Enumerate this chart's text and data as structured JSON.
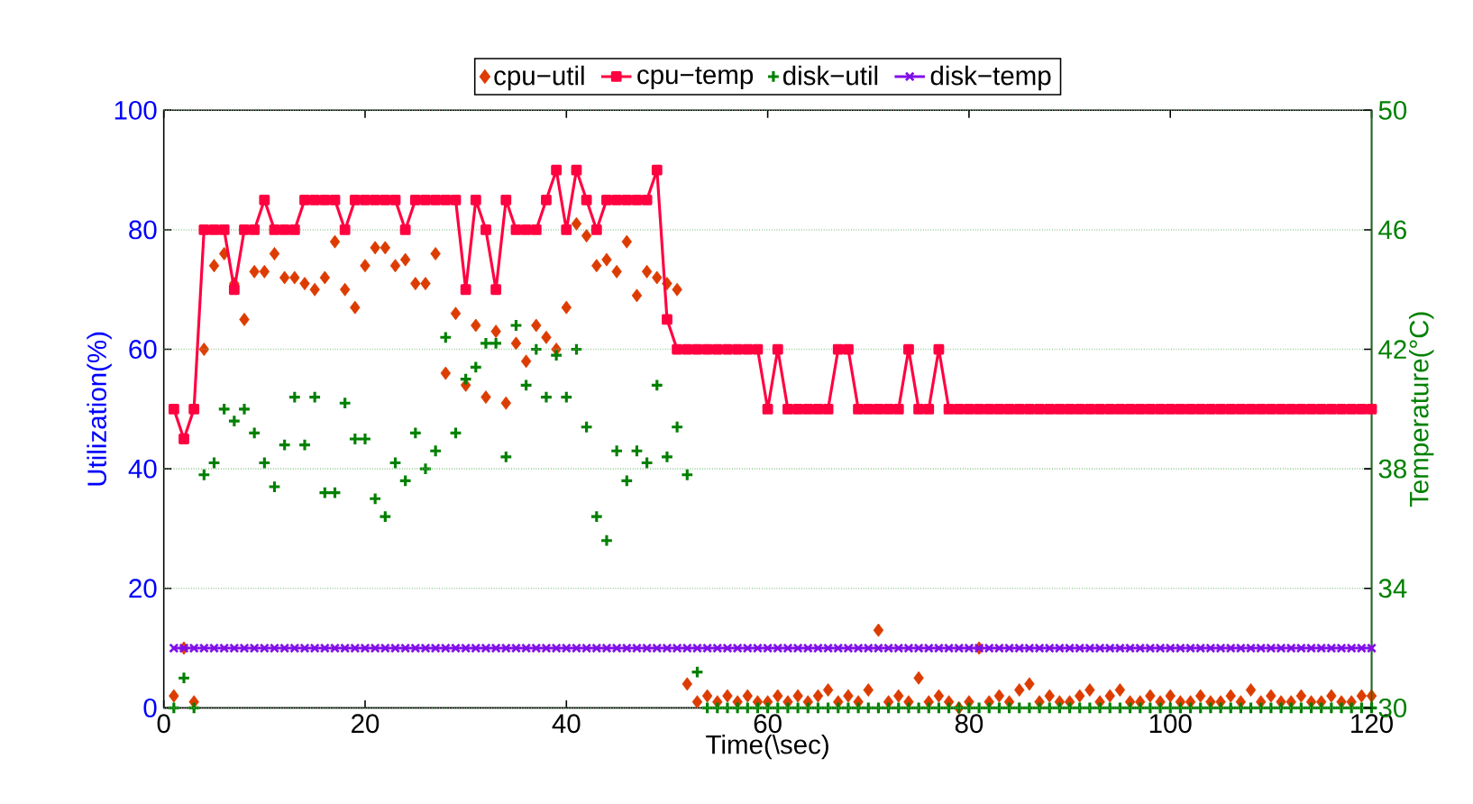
{
  "chart_data": {
    "type": "scatter",
    "xlabel": "Time(\\sec)",
    "ylabel": "Utilization(%)",
    "y2label": "Temperature(°C)",
    "x": [
      1,
      2,
      3,
      4,
      5,
      6,
      7,
      8,
      9,
      10,
      11,
      12,
      13,
      14,
      15,
      16,
      17,
      18,
      19,
      20,
      21,
      22,
      23,
      24,
      25,
      26,
      27,
      28,
      29,
      30,
      31,
      32,
      33,
      34,
      35,
      36,
      37,
      38,
      39,
      40,
      41,
      42,
      43,
      44,
      45,
      46,
      47,
      48,
      49,
      50,
      51,
      52,
      53,
      54,
      55,
      56,
      57,
      58,
      59,
      60,
      61,
      62,
      63,
      64,
      65,
      66,
      67,
      68,
      69,
      70,
      71,
      72,
      73,
      74,
      75,
      76,
      77,
      78,
      79,
      80,
      81,
      82,
      83,
      84,
      85,
      86,
      87,
      88,
      89,
      90,
      91,
      92,
      93,
      94,
      95,
      96,
      97,
      98,
      99,
      100,
      101,
      102,
      103,
      104,
      105,
      106,
      107,
      108,
      109,
      110,
      111,
      112,
      113,
      114,
      115,
      116,
      117,
      118,
      119,
      120
    ],
    "series": [
      {
        "name": "cpu−util",
        "marker": "diamond",
        "color": "#dd3c00",
        "values": [
          2,
          10,
          1,
          60,
          74,
          76,
          71,
          65,
          73,
          73,
          76,
          72,
          72,
          71,
          70,
          72,
          78,
          70,
          67,
          74,
          77,
          77,
          74,
          75,
          71,
          71,
          76,
          56,
          66,
          54,
          64,
          52,
          63,
          51,
          61,
          58,
          64,
          62,
          60,
          67,
          81,
          79,
          74,
          75,
          73,
          78,
          69,
          73,
          72,
          71,
          70,
          4,
          1,
          2,
          1,
          2,
          1,
          2,
          1,
          1,
          2,
          1,
          2,
          1,
          2,
          3,
          1,
          2,
          1,
          3,
          13,
          1,
          2,
          1,
          5,
          1,
          2,
          1,
          0,
          1,
          10,
          1,
          2,
          1,
          3,
          4,
          1,
          2,
          1,
          1,
          2,
          3,
          1,
          2,
          3,
          1,
          1,
          2,
          1,
          2,
          1,
          1,
          2,
          1,
          1,
          2,
          1,
          3,
          1,
          2,
          1,
          1,
          2,
          1,
          1,
          2,
          1,
          1,
          2,
          2
        ]
      },
      {
        "name": "cpu−temp",
        "type": "line",
        "marker": "square",
        "axis": "y2",
        "color": "#ff0040",
        "values": [
          40,
          39,
          40,
          46,
          46,
          46,
          44,
          46,
          46,
          47,
          46,
          46,
          46,
          47,
          47,
          47,
          47,
          46,
          47,
          47,
          47,
          47,
          47,
          46,
          47,
          47,
          47,
          47,
          47,
          44,
          47,
          46,
          44,
          47,
          46,
          46,
          46,
          47,
          48,
          46,
          48,
          47,
          46,
          47,
          47,
          47,
          47,
          47,
          48,
          43,
          42,
          42,
          42,
          42,
          42,
          42,
          42,
          42,
          42,
          40,
          42,
          40,
          40,
          40,
          40,
          40,
          42,
          42,
          40,
          40,
          40,
          40,
          40,
          42,
          40,
          40,
          42,
          40,
          40,
          40,
          40,
          40,
          40,
          40,
          40,
          40,
          40,
          40,
          40,
          40,
          40,
          40,
          40,
          40,
          40,
          40,
          40,
          40,
          40,
          40,
          40,
          40,
          40,
          40,
          40,
          40,
          40,
          40,
          40,
          40,
          40,
          40,
          40,
          40,
          40,
          40,
          40,
          40,
          40,
          40
        ]
      },
      {
        "name": "disk−util",
        "marker": "plus",
        "color": "#008000",
        "values": [
          0,
          5,
          0,
          39,
          41,
          50,
          48,
          50,
          46,
          41,
          37,
          44,
          52,
          44,
          52,
          36,
          36,
          51,
          45,
          45,
          35,
          32,
          41,
          38,
          46,
          40,
          43,
          62,
          46,
          55,
          57,
          61,
          61,
          42,
          64,
          54,
          60,
          52,
          59,
          52,
          60,
          47,
          32,
          28,
          43,
          38,
          43,
          41,
          54,
          42,
          47,
          39,
          6,
          0,
          0,
          0,
          0,
          0,
          0,
          0,
          0,
          0,
          0,
          0,
          0,
          0,
          0,
          0,
          0,
          0,
          0,
          0,
          0,
          0,
          0,
          0,
          0,
          0,
          0,
          0,
          0,
          0,
          0,
          0,
          0,
          0,
          0,
          0,
          0,
          0,
          0,
          0,
          0,
          0,
          0,
          0,
          0,
          0,
          0,
          0,
          0,
          0,
          0,
          0,
          0,
          0,
          0,
          0,
          0,
          0,
          0,
          0,
          0,
          0,
          0,
          0,
          0,
          0,
          0,
          0
        ]
      },
      {
        "name": "disk−temp",
        "type": "line",
        "marker": "cross",
        "axis": "y2",
        "color": "#8010e8",
        "values": [
          32,
          32,
          32,
          32,
          32,
          32,
          32,
          32,
          32,
          32,
          32,
          32,
          32,
          32,
          32,
          32,
          32,
          32,
          32,
          32,
          32,
          32,
          32,
          32,
          32,
          32,
          32,
          32,
          32,
          32,
          32,
          32,
          32,
          32,
          32,
          32,
          32,
          32,
          32,
          32,
          32,
          32,
          32,
          32,
          32,
          32,
          32,
          32,
          32,
          32,
          32,
          32,
          32,
          32,
          32,
          32,
          32,
          32,
          32,
          32,
          32,
          32,
          32,
          32,
          32,
          32,
          32,
          32,
          32,
          32,
          32,
          32,
          32,
          32,
          32,
          32,
          32,
          32,
          32,
          32,
          32,
          32,
          32,
          32,
          32,
          32,
          32,
          32,
          32,
          32,
          32,
          32,
          32,
          32,
          32,
          32,
          32,
          32,
          32,
          32,
          32,
          32,
          32,
          32,
          32,
          32,
          32,
          32,
          32,
          32,
          32,
          32,
          32,
          32,
          32,
          32,
          32,
          32,
          32,
          32
        ]
      }
    ],
    "xlim": [
      0,
      120
    ],
    "xticks": [
      0,
      20,
      40,
      60,
      80,
      100,
      120
    ],
    "ylim": [
      0,
      100
    ],
    "yticks": [
      0,
      20,
      40,
      60,
      80,
      100
    ],
    "y2lim": [
      30,
      50
    ],
    "y2ticks": [
      30,
      34,
      38,
      42,
      46,
      50
    ],
    "grid": "y",
    "legend": "top"
  }
}
